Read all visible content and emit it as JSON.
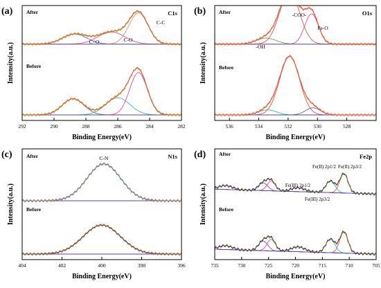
{
  "chart_data": [
    {
      "panel": "(a)",
      "type": "line",
      "element": "C1s",
      "xlabel": "Binding Energy(eV)",
      "ylabel": "Intensity(a.u.)",
      "xlim": [
        292,
        282
      ],
      "xticks": [
        292,
        290,
        288,
        286,
        284,
        282
      ],
      "x_reversed": true,
      "ylim": [
        0,
        1
      ],
      "grid": false,
      "states": [
        {
          "label": "After",
          "baseline": 0.75,
          "offset_y": 0.7,
          "peaks": [
            {
              "label": "C=O",
              "center": 288.7,
              "height": 0.1,
              "fwhm": 1.8,
              "color": "#4a67d6"
            },
            {
              "label": "C-O",
              "center": 286.4,
              "height": 0.12,
              "fwhm": 2.0,
              "color": "#e0508a"
            },
            {
              "label": "C-C",
              "center": 284.7,
              "height": 0.31,
              "fwhm": 1.4,
              "color": "#e89060"
            }
          ],
          "envelope_color": "#e8503c",
          "raw_color": "#b8b040"
        },
        {
          "label": "Before",
          "baseline": 0.0,
          "offset_y": 0.0,
          "peaks": [
            {
              "center": 288.8,
              "height": 0.16,
              "fwhm": 1.6,
              "color": "#4a67d6"
            },
            {
              "center": 286.0,
              "height": 0.17,
              "fwhm": 1.8,
              "color": "#3ab5b0"
            },
            {
              "center": 284.7,
              "height": 0.42,
              "fwhm": 1.3,
              "color": "#e0508a"
            }
          ],
          "envelope_color": "#e8503c",
          "raw_color": "#b8b040"
        }
      ]
    },
    {
      "panel": "(b)",
      "type": "line",
      "element": "O1s",
      "xlabel": "Binding Energy(eV)",
      "ylabel": "Intensity(a.u.)",
      "xlim": [
        537,
        526
      ],
      "xticks": [
        536,
        534,
        532,
        530,
        528
      ],
      "x_reversed": true,
      "ylim": [
        0,
        1
      ],
      "grid": false,
      "states": [
        {
          "label": "After",
          "baseline": 0.75,
          "offset_y": 0.7,
          "peaks": [
            {
              "label": "-OH",
              "center": 533.5,
              "height": 0.06,
              "fwhm": 1.6,
              "color": "#4ab04a"
            },
            {
              "label": "-COO-",
              "center": 531.9,
              "height": 0.52,
              "fwhm": 1.6,
              "color": "#e8503c"
            },
            {
              "label": "Fe-O",
              "center": 530.4,
              "height": 0.3,
              "fwhm": 1.1,
              "color": "#e0508a"
            }
          ],
          "envelope_color": "#e8503c",
          "raw_color": "#e89060"
        },
        {
          "label": "Before",
          "baseline": 0.0,
          "offset_y": 0.0,
          "peaks": [
            {
              "center": 533.4,
              "height": 0.05,
              "fwhm": 1.4,
              "color": "#3ab5b0"
            },
            {
              "center": 531.9,
              "height": 0.58,
              "fwhm": 1.6,
              "color": "#e8503c"
            },
            {
              "center": 530.3,
              "height": 0.07,
              "fwhm": 1.2,
              "color": "#4a67d6"
            }
          ],
          "envelope_color": "#e8503c",
          "raw_color": "#e89060"
        }
      ]
    },
    {
      "panel": "(c)",
      "type": "line",
      "element": "N1s",
      "xlabel": "Binding Energy(eV)",
      "ylabel": "Intensity(a.u.)",
      "xlim": [
        404,
        396
      ],
      "xticks": [
        404,
        402,
        400,
        398,
        396
      ],
      "x_reversed": true,
      "ylim": [
        0,
        1
      ],
      "grid": false,
      "states": [
        {
          "label": "After",
          "baseline": 0.55,
          "offset_y": 0.55,
          "peaks": [
            {
              "label": "C-N",
              "center": 399.9,
              "height": 0.38,
              "fwhm": 2.0,
              "color": "#3ab5b0"
            }
          ],
          "envelope_color": "#3ab5b0",
          "raw_color": "#e8503c"
        },
        {
          "label": "Before",
          "baseline": 0.0,
          "offset_y": 0.0,
          "peaks": [
            {
              "center": 400.0,
              "height": 0.3,
              "fwhm": 2.2,
              "color": "#e8503c"
            }
          ],
          "envelope_color": "#2d6a4a",
          "raw_color": "#e8503c"
        }
      ]
    },
    {
      "panel": "(d)",
      "type": "line",
      "element": "Fe2p",
      "xlabel": "Binding Energy(eV)",
      "ylabel": "Intensity(a.u.)",
      "xlim": [
        735,
        705
      ],
      "xticks": [
        735,
        730,
        725,
        720,
        715,
        710,
        705
      ],
      "x_reversed": true,
      "ylim": [
        0,
        1
      ],
      "grid": false,
      "annotations": [
        "Fe(III) 2p1/2",
        "Fe(II) 2p1/2",
        "Fe(III) 2p3/2",
        "Fe(II) 2p3/2"
      ],
      "states": [
        {
          "label": "After",
          "baseline": 0.62,
          "offset_y": 0.62,
          "peaks": [
            {
              "center": 733.0,
              "height": 0.04,
              "fwhm": 3.0,
              "color": "#e89060"
            },
            {
              "center": 726.0,
              "height": 0.08,
              "fwhm": 2.0,
              "color": "#8a4bd6"
            },
            {
              "center": 724.5,
              "height": 0.1,
              "fwhm": 1.8,
              "color": "#e0508a"
            },
            {
              "center": 719.5,
              "height": 0.04,
              "fwhm": 3.0,
              "color": "#4a67d6"
            },
            {
              "center": 713.5,
              "height": 0.12,
              "fwhm": 2.0,
              "color": "#3ab5b0"
            },
            {
              "center": 711.0,
              "height": 0.2,
              "fwhm": 1.8,
              "color": "#e8503c"
            }
          ],
          "envelope_color": "#8a8020",
          "raw_color": "#2a2a7a"
        },
        {
          "label": "Before",
          "baseline": 0.0,
          "offset_y": 0.0,
          "peaks": [
            {
              "center": 733.0,
              "height": 0.04,
              "fwhm": 3.0,
              "color": "#e89060"
            },
            {
              "center": 726.0,
              "height": 0.1,
              "fwhm": 2.0,
              "color": "#8a4bd6"
            },
            {
              "center": 724.5,
              "height": 0.12,
              "fwhm": 1.8,
              "color": "#e0508a"
            },
            {
              "center": 719.5,
              "height": 0.05,
              "fwhm": 3.0,
              "color": "#4a67d6"
            },
            {
              "center": 713.5,
              "height": 0.14,
              "fwhm": 2.0,
              "color": "#3ab5b0"
            },
            {
              "center": 711.0,
              "height": 0.22,
              "fwhm": 1.8,
              "color": "#e8503c"
            }
          ],
          "envelope_color": "#8a8020",
          "raw_color": "#2a2a7a"
        }
      ]
    }
  ]
}
